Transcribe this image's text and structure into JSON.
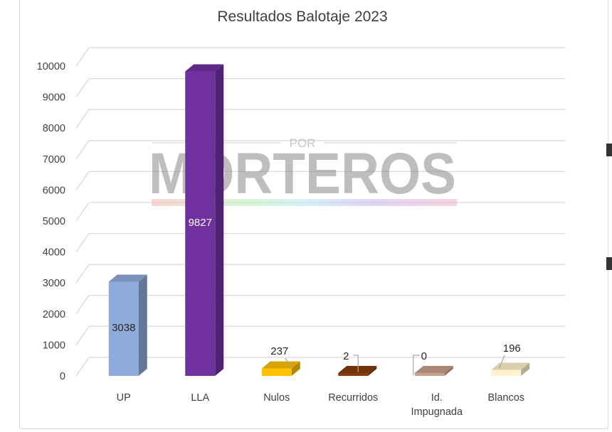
{
  "chart_data": {
    "type": "bar",
    "title": "Resultados Balotaje 2023",
    "xlabel": "",
    "ylabel": "",
    "categories": [
      "UP",
      "LLA",
      "Nulos",
      "Recurridos",
      "Id. Impugnada",
      "Blancos"
    ],
    "values": [
      3038,
      9827,
      237,
      2,
      0,
      196
    ],
    "data_labels": [
      "3038",
      "9827",
      "237",
      "2",
      "0",
      "196"
    ],
    "ylim": [
      0,
      10000
    ],
    "yticks": [
      "0",
      "1000",
      "2000",
      "3000",
      "4000",
      "5000",
      "6000",
      "7000",
      "8000",
      "9000",
      "10000"
    ],
    "grid": true,
    "legend": "none",
    "style": "3d-column",
    "colors": {
      "UP": "#8faadc",
      "LLA": "#7030a0",
      "Nulos": "#ffc000",
      "Recurridos": "#843c0c",
      "Id. Impugnada": "#c9a08a",
      "Blancos": "#fff2cc"
    }
  },
  "watermark": {
    "small_text": "POR",
    "big_text": "MORTEROS"
  }
}
